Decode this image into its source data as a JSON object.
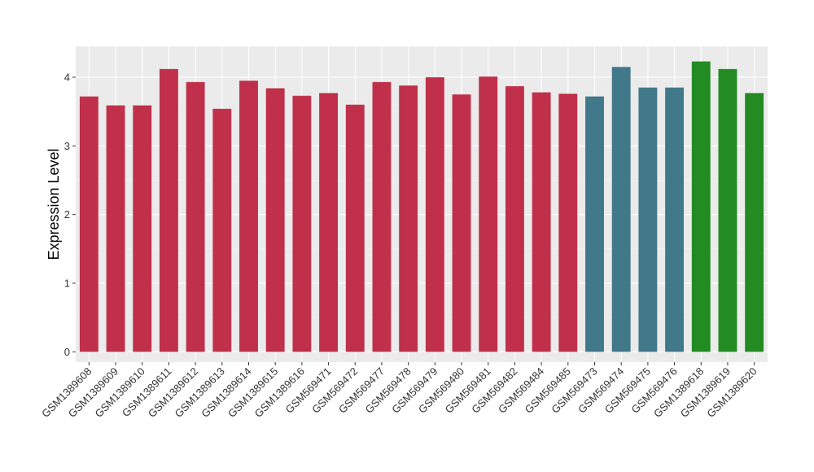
{
  "chart_data": {
    "type": "bar",
    "ylabel": "Expression Level",
    "xlabel": "",
    "ylim": [
      -0.15,
      4.45
    ],
    "yticks": [
      0,
      1,
      2,
      3,
      4
    ],
    "grid": true,
    "background": "#ebebeb",
    "categories": [
      "GSM1389608",
      "GSM1389609",
      "GSM1389610",
      "GSM1389611",
      "GSM1389612",
      "GSM1389613",
      "GSM1389614",
      "GSM1389615",
      "GSM1389616",
      "GSM569471",
      "GSM569472",
      "GSM569477",
      "GSM569478",
      "GSM569479",
      "GSM569480",
      "GSM569481",
      "GSM569482",
      "GSM569484",
      "GSM569485",
      "GSM569473",
      "GSM569474",
      "GSM569475",
      "GSM569476",
      "GSM1389618",
      "GSM1389619",
      "GSM1389620"
    ],
    "values": [
      3.72,
      3.59,
      3.59,
      4.12,
      3.93,
      3.54,
      3.95,
      3.84,
      3.73,
      3.77,
      3.6,
      3.93,
      3.88,
      4.0,
      3.75,
      4.01,
      3.87,
      3.78,
      3.76,
      3.72,
      4.15,
      3.85,
      3.85,
      4.23,
      4.12,
      3.77
    ],
    "bar_colors": [
      "#c0304a",
      "#c0304a",
      "#c0304a",
      "#c0304a",
      "#c0304a",
      "#c0304a",
      "#c0304a",
      "#c0304a",
      "#c0304a",
      "#c0304a",
      "#c0304a",
      "#c0304a",
      "#c0304a",
      "#c0304a",
      "#c0304a",
      "#c0304a",
      "#c0304a",
      "#c0304a",
      "#c0304a",
      "#41788a",
      "#41788a",
      "#41788a",
      "#41788a",
      "#228b22",
      "#228b22",
      "#228b22"
    ]
  }
}
